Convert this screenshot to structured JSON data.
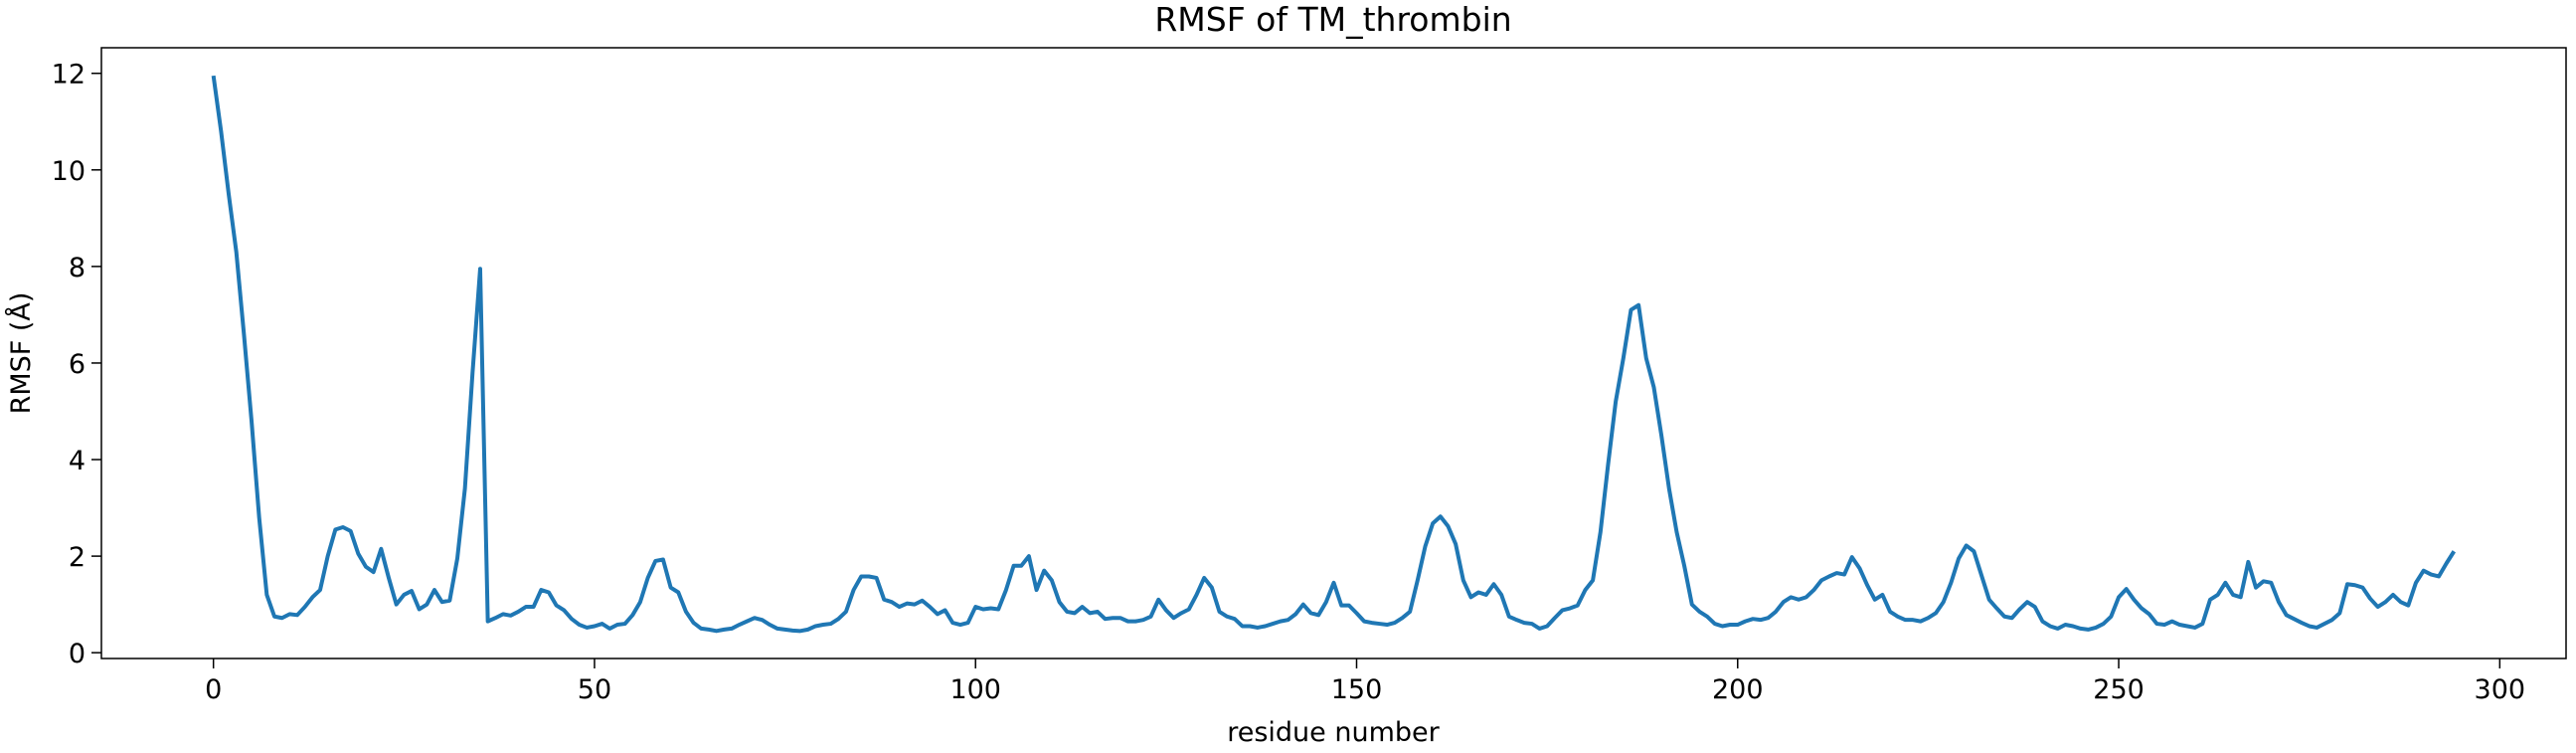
{
  "chart_data": {
    "type": "line",
    "title": "RMSF of TM_thrombin",
    "xlabel": "residue number",
    "ylabel": "RMSF (Å)",
    "color": "#1f77b4",
    "xlim": [
      -14.7,
      308.7
    ],
    "ylim": [
      -0.12,
      12.53
    ],
    "xticks": [
      0,
      50,
      100,
      150,
      200,
      250,
      300
    ],
    "yticks": [
      0,
      2,
      4,
      6,
      8,
      10,
      12
    ],
    "x": [
      0,
      1,
      2,
      3,
      4,
      5,
      6,
      7,
      8,
      9,
      10,
      11,
      12,
      13,
      14,
      15,
      16,
      17,
      18,
      19,
      20,
      21,
      22,
      23,
      24,
      25,
      26,
      27,
      28,
      29,
      30,
      31,
      32,
      33,
      34,
      35,
      36,
      37,
      38,
      39,
      40,
      41,
      42,
      43,
      44,
      45,
      46,
      47,
      48,
      49,
      50,
      51,
      52,
      53,
      54,
      55,
      56,
      57,
      58,
      59,
      60,
      61,
      62,
      63,
      64,
      65,
      66,
      67,
      68,
      69,
      70,
      71,
      72,
      73,
      74,
      75,
      76,
      77,
      78,
      79,
      80,
      81,
      82,
      83,
      84,
      85,
      86,
      87,
      88,
      89,
      90,
      91,
      92,
      93,
      94,
      95,
      96,
      97,
      98,
      99,
      100,
      101,
      102,
      103,
      104,
      105,
      106,
      107,
      108,
      109,
      110,
      111,
      112,
      113,
      114,
      115,
      116,
      117,
      118,
      119,
      120,
      121,
      122,
      123,
      124,
      125,
      126,
      127,
      128,
      129,
      130,
      131,
      132,
      133,
      134,
      135,
      136,
      137,
      138,
      139,
      140,
      141,
      142,
      143,
      144,
      145,
      146,
      147,
      148,
      149,
      150,
      151,
      152,
      153,
      154,
      155,
      156,
      157,
      158,
      159,
      160,
      161,
      162,
      163,
      164,
      165,
      166,
      167,
      168,
      169,
      170,
      171,
      172,
      173,
      174,
      175,
      176,
      177,
      178,
      179,
      180,
      181,
      182,
      183,
      184,
      185,
      186,
      187,
      188,
      189,
      190,
      191,
      192,
      193,
      194,
      195,
      196,
      197,
      198,
      199,
      200,
      201,
      202,
      203,
      204,
      205,
      206,
      207,
      208,
      209,
      210,
      211,
      212,
      213,
      214,
      215,
      216,
      217,
      218,
      219,
      220,
      221,
      222,
      223,
      224,
      225,
      226,
      227,
      228,
      229,
      230,
      231,
      232,
      233,
      234,
      235,
      236,
      237,
      238,
      239,
      240,
      241,
      242,
      243,
      244,
      245,
      246,
      247,
      248,
      249,
      250,
      251,
      252,
      253,
      254,
      255,
      256,
      257,
      258,
      259,
      260,
      261,
      262,
      263,
      264,
      265,
      266,
      267,
      268,
      269,
      270,
      271,
      272,
      273,
      274,
      275,
      276,
      277,
      278,
      279,
      280,
      281,
      282,
      283,
      284,
      285,
      286,
      287,
      288,
      289,
      290,
      291,
      292,
      293,
      294
    ],
    "values": [
      11.95,
      10.8,
      9.5,
      8.3,
      6.6,
      4.8,
      2.8,
      1.2,
      0.75,
      0.72,
      0.8,
      0.78,
      0.95,
      1.15,
      1.3,
      2.0,
      2.55,
      2.6,
      2.52,
      2.05,
      1.78,
      1.67,
      2.15,
      1.55,
      1.0,
      1.2,
      1.28,
      0.9,
      1.0,
      1.3,
      1.05,
      1.08,
      1.95,
      3.4,
      5.8,
      7.95,
      0.65,
      0.72,
      0.8,
      0.77,
      0.85,
      0.95,
      0.95,
      1.3,
      1.25,
      0.98,
      0.88,
      0.7,
      0.58,
      0.52,
      0.55,
      0.6,
      0.5,
      0.58,
      0.6,
      0.78,
      1.05,
      1.55,
      1.9,
      1.93,
      1.35,
      1.25,
      0.85,
      0.62,
      0.5,
      0.48,
      0.45,
      0.48,
      0.5,
      0.58,
      0.65,
      0.72,
      0.68,
      0.58,
      0.5,
      0.48,
      0.46,
      0.45,
      0.48,
      0.55,
      0.58,
      0.6,
      0.7,
      0.85,
      1.3,
      1.58,
      1.58,
      1.55,
      1.1,
      1.05,
      0.95,
      1.02,
      1.0,
      1.08,
      0.95,
      0.8,
      0.88,
      0.62,
      0.58,
      0.62,
      0.95,
      0.9,
      0.92,
      0.9,
      1.3,
      1.8,
      1.8,
      2.0,
      1.3,
      1.7,
      1.5,
      1.05,
      0.85,
      0.82,
      0.95,
      0.82,
      0.85,
      0.7,
      0.72,
      0.72,
      0.65,
      0.65,
      0.68,
      0.75,
      1.1,
      0.88,
      0.72,
      0.82,
      0.9,
      1.2,
      1.55,
      1.35,
      0.85,
      0.75,
      0.7,
      0.55,
      0.55,
      0.52,
      0.55,
      0.6,
      0.65,
      0.68,
      0.8,
      1.0,
      0.82,
      0.78,
      1.05,
      1.45,
      0.98,
      0.98,
      0.82,
      0.65,
      0.62,
      0.6,
      0.58,
      0.62,
      0.72,
      0.85,
      1.5,
      2.2,
      2.68,
      2.82,
      2.62,
      2.25,
      1.5,
      1.15,
      1.25,
      1.2,
      1.42,
      1.2,
      0.75,
      0.68,
      0.62,
      0.6,
      0.5,
      0.55,
      0.72,
      0.88,
      0.92,
      0.98,
      1.3,
      1.5,
      2.5,
      3.9,
      5.2,
      6.1,
      7.1,
      7.2,
      6.1,
      5.5,
      4.5,
      3.4,
      2.5,
      1.8,
      1.0,
      0.85,
      0.75,
      0.6,
      0.55,
      0.58,
      0.58,
      0.65,
      0.7,
      0.68,
      0.72,
      0.85,
      1.05,
      1.15,
      1.1,
      1.15,
      1.3,
      1.5,
      1.58,
      1.65,
      1.62,
      1.98,
      1.75,
      1.4,
      1.1,
      1.2,
      0.85,
      0.75,
      0.68,
      0.68,
      0.65,
      0.72,
      0.82,
      1.05,
      1.45,
      1.95,
      2.22,
      2.1,
      1.6,
      1.1,
      0.92,
      0.75,
      0.72,
      0.9,
      1.05,
      0.95,
      0.65,
      0.55,
      0.5,
      0.58,
      0.55,
      0.5,
      0.48,
      0.52,
      0.6,
      0.75,
      1.15,
      1.32,
      1.1,
      0.92,
      0.8,
      0.6,
      0.58,
      0.65,
      0.58,
      0.55,
      0.52,
      0.6,
      1.1,
      1.2,
      1.45,
      1.2,
      1.15,
      1.88,
      1.35,
      1.48,
      1.45,
      1.05,
      0.78,
      0.7,
      0.62,
      0.55,
      0.52,
      0.6,
      0.68,
      0.82,
      1.42,
      1.4,
      1.35,
      1.12,
      0.95,
      1.05,
      1.2,
      1.05,
      0.98,
      1.45,
      1.7,
      1.62,
      1.58,
      1.85,
      2.1
    ]
  }
}
